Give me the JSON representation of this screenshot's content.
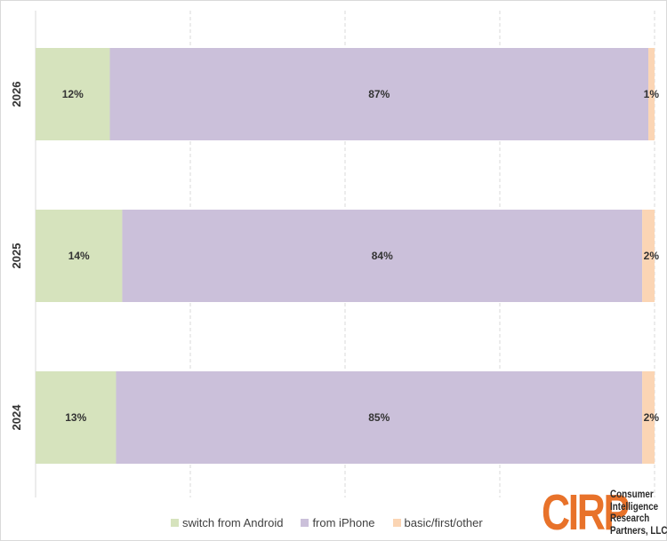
{
  "chart_data": {
    "type": "bar",
    "orientation": "horizontal",
    "stacked": "percent",
    "categories": [
      "2026",
      "2025",
      "2024"
    ],
    "series": [
      {
        "name": "switch from Android",
        "color": "#d6e3bd",
        "values": [
          12,
          14,
          13
        ],
        "labels": [
          "12%",
          "14%",
          "13%"
        ]
      },
      {
        "name": "from iPhone",
        "color": "#cbc0da",
        "values": [
          87,
          84,
          85
        ],
        "labels": [
          "87%",
          "84%",
          "85%"
        ]
      },
      {
        "name": "basic/first/other",
        "color": "#fbd5b4",
        "values": [
          1,
          2,
          2
        ],
        "labels": [
          "1%",
          "2%",
          "2%"
        ]
      }
    ],
    "xlim": [
      0,
      100
    ],
    "grid": true,
    "legend_position": "bottom"
  },
  "logo": {
    "mark": "CIRP",
    "text": [
      "Consumer",
      "Intelligence",
      "Research",
      "Partners, LLC"
    ]
  }
}
